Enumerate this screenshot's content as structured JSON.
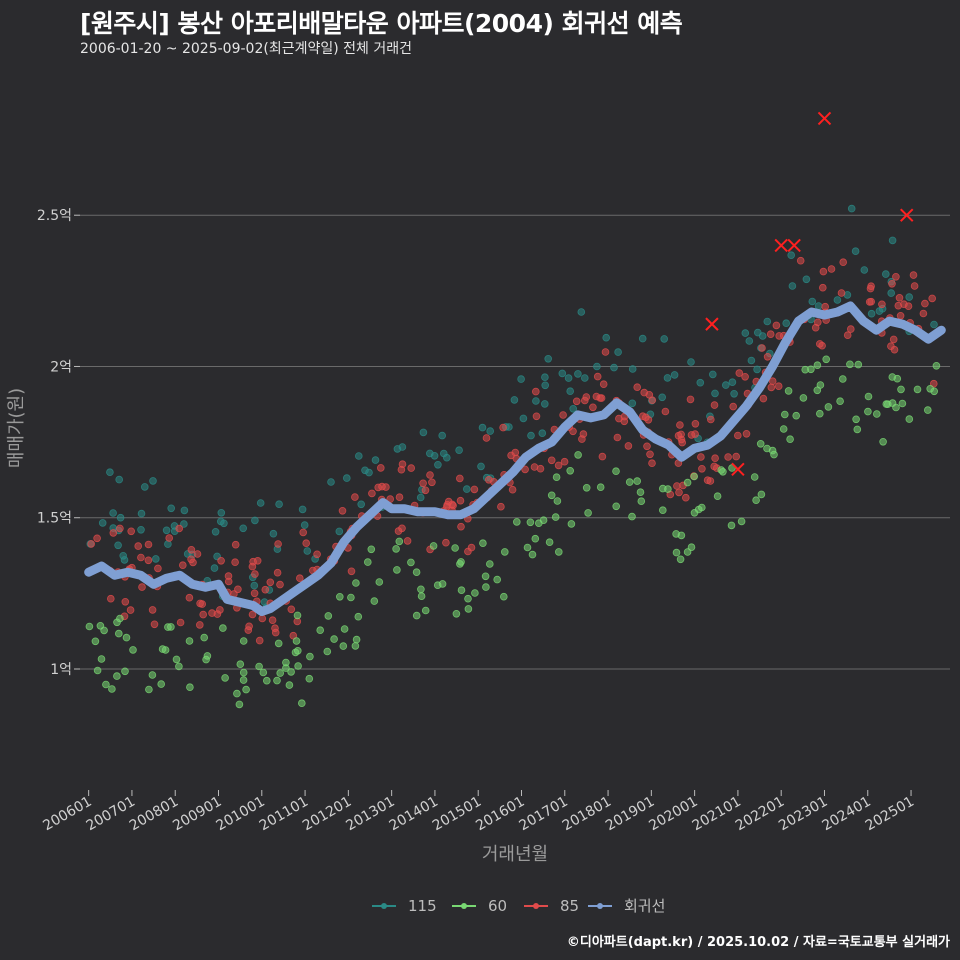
{
  "header": {
    "title": "[원주시] 봉산 아포리배말타운 아파트(2004) 회귀선 예측",
    "subtitle": "2006-01-20 ~ 2025-09-02(최근계약일) 전체 거래건"
  },
  "footer": {
    "credit": "©디아파트(dapt.kr) / 2025.10.02 / 자료=국토교통부 실거래가"
  },
  "colors": {
    "background": "#2b2b2e",
    "grid": "#6a6a6a",
    "s115": "#2a8a86",
    "s60": "#79d873",
    "s85": "#e04b4b",
    "regression": "#7f9fd3",
    "cancel": "#ff2020"
  },
  "chart_data": {
    "type": "scatter",
    "title": "[원주시] 봉산 아포리배말타운 아파트(2004) 회귀선 예측",
    "xlabel": "거래년월",
    "ylabel": "매매가(원)",
    "x_range": [
      2005.8,
      2025.9
    ],
    "y_range": [
      0.6,
      2.98
    ],
    "y_ticks": [
      1.0,
      1.5,
      2.0,
      2.5
    ],
    "y_tick_labels": [
      "1억",
      "1.5억",
      "2억",
      "2.5억"
    ],
    "x_ticks": [
      2006,
      2007,
      2008,
      2009,
      2010,
      2011,
      2012,
      2013,
      2014,
      2015,
      2016,
      2017,
      2018,
      2019,
      2020,
      2021,
      2022,
      2023,
      2024,
      2025
    ],
    "x_tick_labels": [
      "200601",
      "200701",
      "200801",
      "200901",
      "201001",
      "201101",
      "201201",
      "201301",
      "201401",
      "201501",
      "201601",
      "201701",
      "201801",
      "201901",
      "202001",
      "202101",
      "202201",
      "202301",
      "202401",
      "202501"
    ],
    "grid": true,
    "legend_position": "bottom",
    "legend": [
      {
        "key": "s115",
        "label": "115"
      },
      {
        "key": "s60",
        "label": "60"
      },
      {
        "key": "s85",
        "label": "85"
      },
      {
        "key": "regression",
        "label": "회귀선"
      }
    ],
    "regression": [
      [
        2006.0,
        1.32
      ],
      [
        2006.3,
        1.34
      ],
      [
        2006.6,
        1.31
      ],
      [
        2006.9,
        1.32
      ],
      [
        2007.2,
        1.31
      ],
      [
        2007.5,
        1.28
      ],
      [
        2007.8,
        1.3
      ],
      [
        2008.1,
        1.31
      ],
      [
        2008.4,
        1.28
      ],
      [
        2008.7,
        1.27
      ],
      [
        2009.0,
        1.28
      ],
      [
        2009.2,
        1.23
      ],
      [
        2009.5,
        1.22
      ],
      [
        2009.8,
        1.21
      ],
      [
        2010.0,
        1.19
      ],
      [
        2010.2,
        1.2
      ],
      [
        2010.5,
        1.23
      ],
      [
        2010.8,
        1.26
      ],
      [
        2011.0,
        1.28
      ],
      [
        2011.3,
        1.31
      ],
      [
        2011.6,
        1.35
      ],
      [
        2011.9,
        1.42
      ],
      [
        2012.2,
        1.47
      ],
      [
        2012.5,
        1.51
      ],
      [
        2012.8,
        1.55
      ],
      [
        2013.0,
        1.53
      ],
      [
        2013.3,
        1.53
      ],
      [
        2013.6,
        1.52
      ],
      [
        2014.0,
        1.52
      ],
      [
        2014.3,
        1.51
      ],
      [
        2014.6,
        1.51
      ],
      [
        2014.9,
        1.53
      ],
      [
        2015.2,
        1.57
      ],
      [
        2015.5,
        1.61
      ],
      [
        2015.8,
        1.65
      ],
      [
        2016.1,
        1.7
      ],
      [
        2016.4,
        1.73
      ],
      [
        2016.7,
        1.75
      ],
      [
        2017.0,
        1.8
      ],
      [
        2017.3,
        1.84
      ],
      [
        2017.6,
        1.83
      ],
      [
        2017.9,
        1.84
      ],
      [
        2018.2,
        1.88
      ],
      [
        2018.5,
        1.85
      ],
      [
        2018.8,
        1.79
      ],
      [
        2019.1,
        1.76
      ],
      [
        2019.4,
        1.74
      ],
      [
        2019.7,
        1.7
      ],
      [
        2020.0,
        1.73
      ],
      [
        2020.3,
        1.74
      ],
      [
        2020.6,
        1.77
      ],
      [
        2020.9,
        1.82
      ],
      [
        2021.2,
        1.87
      ],
      [
        2021.5,
        1.93
      ],
      [
        2021.8,
        2.0
      ],
      [
        2022.1,
        2.08
      ],
      [
        2022.4,
        2.15
      ],
      [
        2022.7,
        2.18
      ],
      [
        2023.0,
        2.17
      ],
      [
        2023.3,
        2.18
      ],
      [
        2023.6,
        2.2
      ],
      [
        2023.9,
        2.15
      ],
      [
        2024.2,
        2.12
      ],
      [
        2024.5,
        2.15
      ],
      [
        2024.8,
        2.14
      ],
      [
        2025.1,
        2.12
      ],
      [
        2025.4,
        2.09
      ],
      [
        2025.7,
        2.12
      ]
    ],
    "cancelled": [
      [
        2020.4,
        2.14
      ],
      [
        2021.0,
        1.66
      ],
      [
        2022.0,
        2.4
      ],
      [
        2022.3,
        2.4
      ],
      [
        2023.0,
        2.82
      ],
      [
        2024.9,
        2.5
      ]
    ]
  }
}
